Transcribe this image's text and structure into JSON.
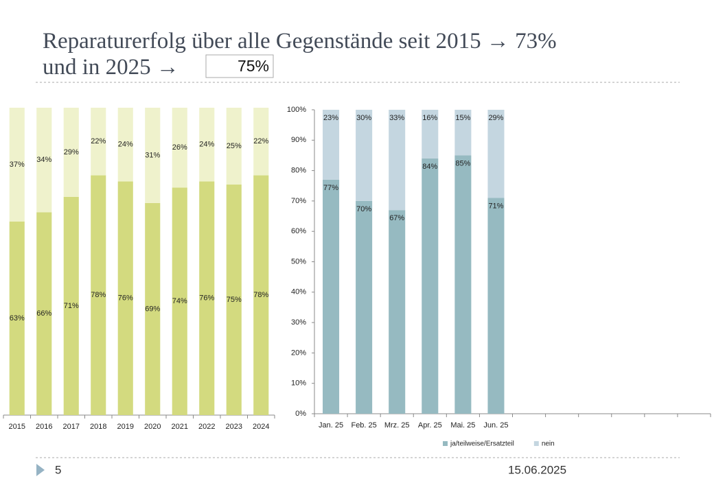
{
  "title": {
    "line1": "Reparaturerfolg über alle Gegenstände seit 2015 → 73%",
    "line2": "und in 2025 →",
    "highlight": "75%"
  },
  "footer": {
    "page": "5",
    "date": "15.06.2025"
  },
  "chart_data": [
    {
      "type": "bar",
      "stacked": true,
      "label_position": "center",
      "categories": [
        "2015",
        "2016",
        "2017",
        "2018",
        "2019",
        "2020",
        "2021",
        "2022",
        "2023",
        "2024"
      ],
      "ylim": [
        0,
        100
      ],
      "series": [
        {
          "color": "#d3da7f",
          "values": [
            63,
            66,
            71,
            78,
            76,
            69,
            74,
            76,
            75,
            78
          ],
          "value_labels": [
            "63%",
            "66%",
            "71%",
            "78%",
            "76%",
            "69%",
            "74%",
            "76%",
            "75%",
            "78%"
          ]
        },
        {
          "color": "#eff2cc",
          "values": [
            37,
            34,
            29,
            22,
            24,
            31,
            26,
            24,
            25,
            22
          ],
          "value_labels": [
            "37%",
            "34%",
            "29%",
            "22%",
            "24%",
            "31%",
            "26%",
            "24%",
            "25%",
            "22%"
          ]
        }
      ]
    },
    {
      "type": "bar",
      "stacked": true,
      "label_position": "inside_end",
      "legend": "bottom",
      "categories": [
        "Jan. 25",
        "Feb. 25",
        "Mrz. 25",
        "Apr. 25",
        "Mai. 25",
        "Jun. 25",
        null,
        null,
        null,
        null,
        null,
        null
      ],
      "ylim": [
        0,
        100
      ],
      "yticks": [
        {
          "value": 0,
          "label": "0%"
        },
        {
          "value": 10,
          "label": "10%"
        },
        {
          "value": 20,
          "label": "20%"
        },
        {
          "value": 30,
          "label": "30%"
        },
        {
          "value": 40,
          "label": "40%"
        },
        {
          "value": 50,
          "label": "50%"
        },
        {
          "value": 60,
          "label": "60%"
        },
        {
          "value": 70,
          "label": "70%"
        },
        {
          "value": 80,
          "label": "80%"
        },
        {
          "value": 90,
          "label": "90%"
        },
        {
          "value": 100,
          "label": "100%"
        }
      ],
      "series": [
        {
          "name": "ja/teilweise/Ersatzteil",
          "color": "#96bac1",
          "values": [
            77,
            70,
            67,
            84,
            85,
            71,
            null,
            null,
            null,
            null,
            null,
            null
          ],
          "value_labels": [
            "77%",
            "70%",
            "67%",
            "84%",
            "85%",
            "71%",
            null,
            null,
            null,
            null,
            null,
            null
          ]
        },
        {
          "name": "nein",
          "color": "#c4d6e0",
          "values": [
            23,
            30,
            33,
            16,
            15,
            29,
            null,
            null,
            null,
            null,
            null,
            null
          ],
          "value_labels": [
            "23%",
            "30%",
            "33%",
            "16%",
            "15%",
            "29%",
            null,
            null,
            null,
            null,
            null,
            null
          ]
        }
      ]
    }
  ]
}
